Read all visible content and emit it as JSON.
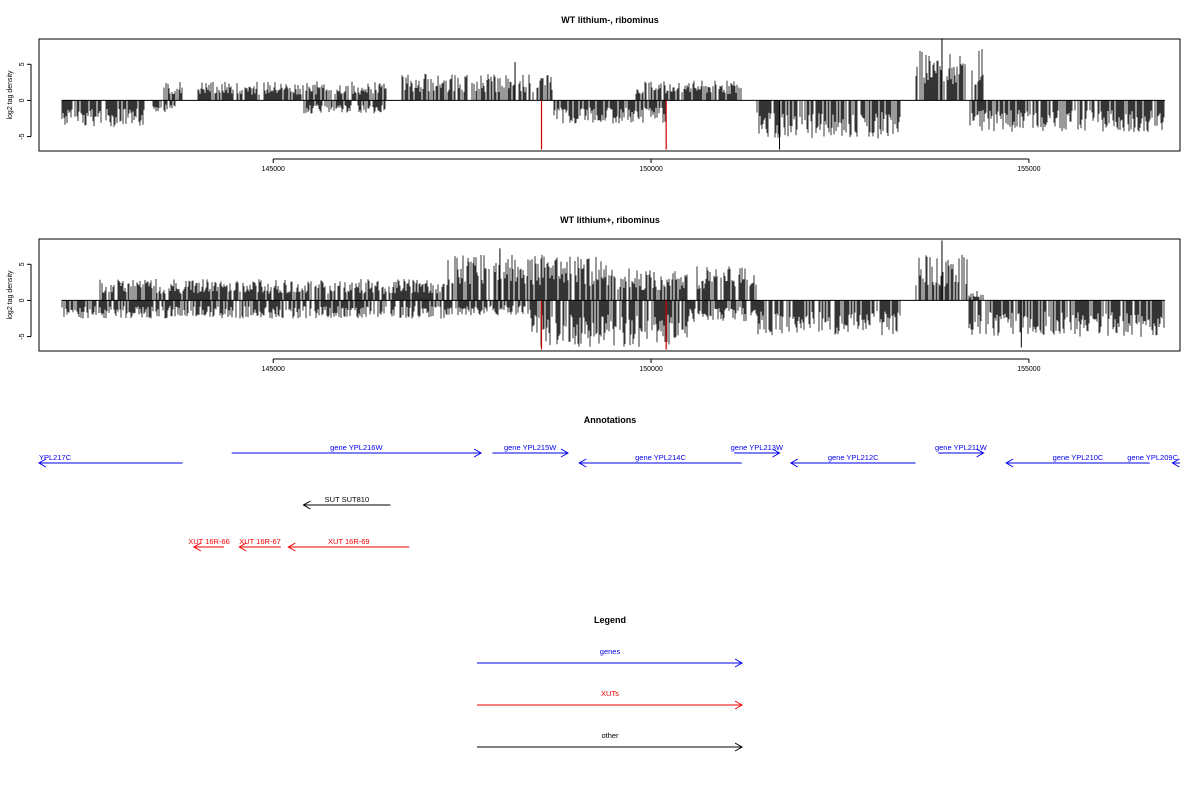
{
  "chart_data": [
    {
      "type": "bar",
      "title": "WT lithium-, ribominus",
      "ylabel": "log2 tag density",
      "xlabel": "",
      "xlim": [
        141900,
        157000
      ],
      "ylim": [
        -7,
        8.5
      ],
      "xticks": [
        145000,
        150000,
        155000
      ],
      "yticks": [
        -5,
        0,
        5
      ],
      "grid": false,
      "track_start": 142200,
      "track_end": 156800,
      "plus_strand_regions": [
        {
          "from": 143550,
          "to": 143800,
          "amp": 2.4
        },
        {
          "from": 144000,
          "to": 146500,
          "amp": 2.3
        },
        {
          "from": 146700,
          "to": 148700,
          "amp": 3.2
        },
        {
          "from": 149800,
          "to": 151200,
          "amp": 2.4
        },
        {
          "from": 153500,
          "to": 154400,
          "amp": 6.2
        }
      ],
      "minus_strand_regions": [
        {
          "from": 142200,
          "to": 143300,
          "amp": 3.2
        },
        {
          "from": 143400,
          "to": 143700,
          "amp": 1.4
        },
        {
          "from": 145400,
          "to": 146500,
          "amp": 1.6
        },
        {
          "from": 148700,
          "to": 150200,
          "amp": 2.8
        },
        {
          "from": 151400,
          "to": 153300,
          "amp": 4.6
        },
        {
          "from": 154200,
          "to": 156800,
          "amp": 3.8
        }
      ],
      "highlighted_positions": [
        {
          "x": 148550,
          "y": -6.8,
          "color": "#cc0000"
        },
        {
          "x": 150200,
          "y": -6.8,
          "color": "#cc0000"
        }
      ],
      "peaks": [
        {
          "x": 153850,
          "y": 8.6
        },
        {
          "x": 148200,
          "y": 5.3
        },
        {
          "x": 151700,
          "y": -6.8
        }
      ]
    },
    {
      "type": "bar",
      "title": "WT lithium+, ribominus",
      "ylabel": "log2 tag density",
      "xlabel": "",
      "xlim": [
        141900,
        157000
      ],
      "ylim": [
        -7,
        8.5
      ],
      "xticks": [
        145000,
        150000,
        155000
      ],
      "yticks": [
        -5,
        0,
        5
      ],
      "grid": false,
      "track_start": 142200,
      "track_end": 156800,
      "plus_strand_regions": [
        {
          "from": 142700,
          "to": 147300,
          "amp": 2.6
        },
        {
          "from": 147300,
          "to": 149500,
          "amp": 5.5
        },
        {
          "from": 149500,
          "to": 150500,
          "amp": 4.0
        },
        {
          "from": 150600,
          "to": 151400,
          "amp": 4.2
        },
        {
          "from": 153500,
          "to": 154200,
          "amp": 5.5
        },
        {
          "from": 154200,
          "to": 154400,
          "amp": 1.2
        }
      ],
      "minus_strand_regions": [
        {
          "from": 142200,
          "to": 147300,
          "amp": 2.2
        },
        {
          "from": 147300,
          "to": 148400,
          "amp": 1.8
        },
        {
          "from": 148400,
          "to": 150500,
          "amp": 5.6
        },
        {
          "from": 150500,
          "to": 151400,
          "amp": 2.6
        },
        {
          "from": 151400,
          "to": 153300,
          "amp": 4.2
        },
        {
          "from": 154200,
          "to": 156800,
          "amp": 4.4
        }
      ],
      "highlighted_positions": [
        {
          "x": 148550,
          "y": -6.8,
          "color": "#cc0000"
        },
        {
          "x": 150200,
          "y": -6.8,
          "color": "#cc0000"
        }
      ],
      "peaks": [
        {
          "x": 153850,
          "y": 8.3
        },
        {
          "x": 148000,
          "y": 7.2
        },
        {
          "x": 154900,
          "y": -6.5
        }
      ]
    }
  ],
  "annotations": {
    "title": "Annotations",
    "items": [
      {
        "label": "YPL217C",
        "from": 141900,
        "to": 143800,
        "dir": "left",
        "row": 1,
        "kind": "genes",
        "label_align": "start"
      },
      {
        "label": "gene YPL216W",
        "from": 144450,
        "to": 147750,
        "dir": "right",
        "row": 0,
        "kind": "genes"
      },
      {
        "label": "gene YPL215W",
        "from": 147900,
        "to": 148900,
        "dir": "right",
        "row": 0,
        "kind": "genes"
      },
      {
        "label": "gene YPL214C",
        "from": 149050,
        "to": 151200,
        "dir": "left",
        "row": 1,
        "kind": "genes"
      },
      {
        "label": "gene YPL213W",
        "from": 151100,
        "to": 151700,
        "dir": "right",
        "row": 0,
        "kind": "genes"
      },
      {
        "label": "gene YPL212C",
        "from": 151850,
        "to": 153500,
        "dir": "left",
        "row": 1,
        "kind": "genes"
      },
      {
        "label": "gene YPL211W",
        "from": 153800,
        "to": 154400,
        "dir": "right",
        "row": 0,
        "kind": "genes"
      },
      {
        "label": "gene YPL210C",
        "from": 154700,
        "to": 156600,
        "dir": "left",
        "row": 1,
        "kind": "genes"
      },
      {
        "label": "gene YPL209C",
        "from": 156900,
        "to": 158000,
        "dir": "left",
        "row": 1,
        "kind": "genes"
      },
      {
        "label": "SUT SUT810",
        "from": 145400,
        "to": 146550,
        "dir": "left",
        "row": 2,
        "kind": "other"
      },
      {
        "label": "XUT 16R-66",
        "from": 143950,
        "to": 144350,
        "dir": "left",
        "row": 3,
        "kind": "XUTs"
      },
      {
        "label": "XUT 16R-67",
        "from": 144550,
        "to": 145100,
        "dir": "left",
        "row": 3,
        "kind": "XUTs"
      },
      {
        "label": "XUT 16R-69",
        "from": 145200,
        "to": 146800,
        "dir": "left",
        "row": 3,
        "kind": "XUTs"
      }
    ]
  },
  "legend": {
    "title": "Legend",
    "entries": [
      {
        "label": "genes",
        "color": "#0000ee"
      },
      {
        "label": "XUTs",
        "color": "#ee0000"
      },
      {
        "label": "other",
        "color": "#000000"
      }
    ]
  },
  "colors": {
    "genes": "#0000ee",
    "XUTs": "#ee0000",
    "other": "#000000",
    "highlight": "#cc0000",
    "signal": "#000000"
  }
}
